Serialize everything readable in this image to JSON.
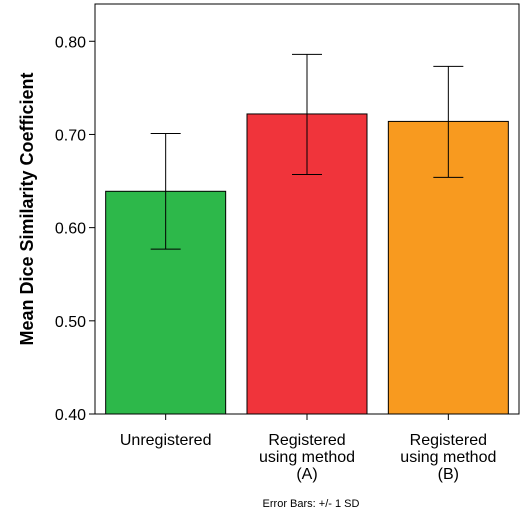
{
  "chart_data": {
    "type": "bar",
    "ylabel": "Mean Dice Similarity Coefficient",
    "xlabel": "",
    "ylim": [
      0.4,
      0.84
    ],
    "yticks": [
      "0.40",
      "0.50",
      "0.60",
      "0.70",
      "0.80"
    ],
    "grid": false,
    "categories": [
      [
        "Unregistered"
      ],
      [
        "Registered",
        "using method",
        "(A)"
      ],
      [
        "Registered",
        "using method",
        "(B)"
      ]
    ],
    "values": [
      0.639,
      0.722,
      0.714
    ],
    "error_low": [
      0.577,
      0.657,
      0.654
    ],
    "error_high": [
      0.701,
      0.786,
      0.773
    ],
    "colors": [
      "#2db84a",
      "#f0343b",
      "#f89a1f"
    ],
    "footnote": "Error Bars: +/- 1 SD"
  }
}
